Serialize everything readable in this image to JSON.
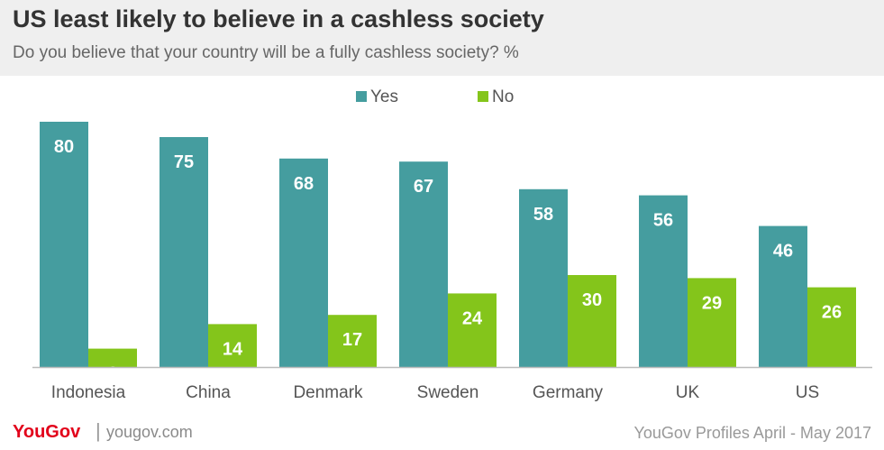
{
  "header": {
    "title": "US least likely to believe in a cashless society",
    "subtitle": "Do you believe that your country will be a fully cashless society? %"
  },
  "footer": {
    "logo": "YouGov",
    "separator": "|",
    "site": "yougov.com",
    "source": "YouGov Profiles April - May 2017"
  },
  "colors": {
    "yes": "#459d9f",
    "no": "#84c51b",
    "axis": "#bbbbbb"
  },
  "chart_data": {
    "type": "bar",
    "title": "US least likely to believe in a cashless society",
    "xlabel": "",
    "ylabel": "%",
    "ylim": [
      0,
      80
    ],
    "grid": false,
    "legend": "top-center",
    "categories": [
      "Indonesia",
      "China",
      "Denmark",
      "Sweden",
      "Germany",
      "UK",
      "US"
    ],
    "series": [
      {
        "name": "Yes",
        "values": [
          80,
          75,
          68,
          67,
          58,
          56,
          46
        ]
      },
      {
        "name": "No",
        "values": [
          6,
          14,
          17,
          24,
          30,
          29,
          26
        ]
      }
    ]
  }
}
